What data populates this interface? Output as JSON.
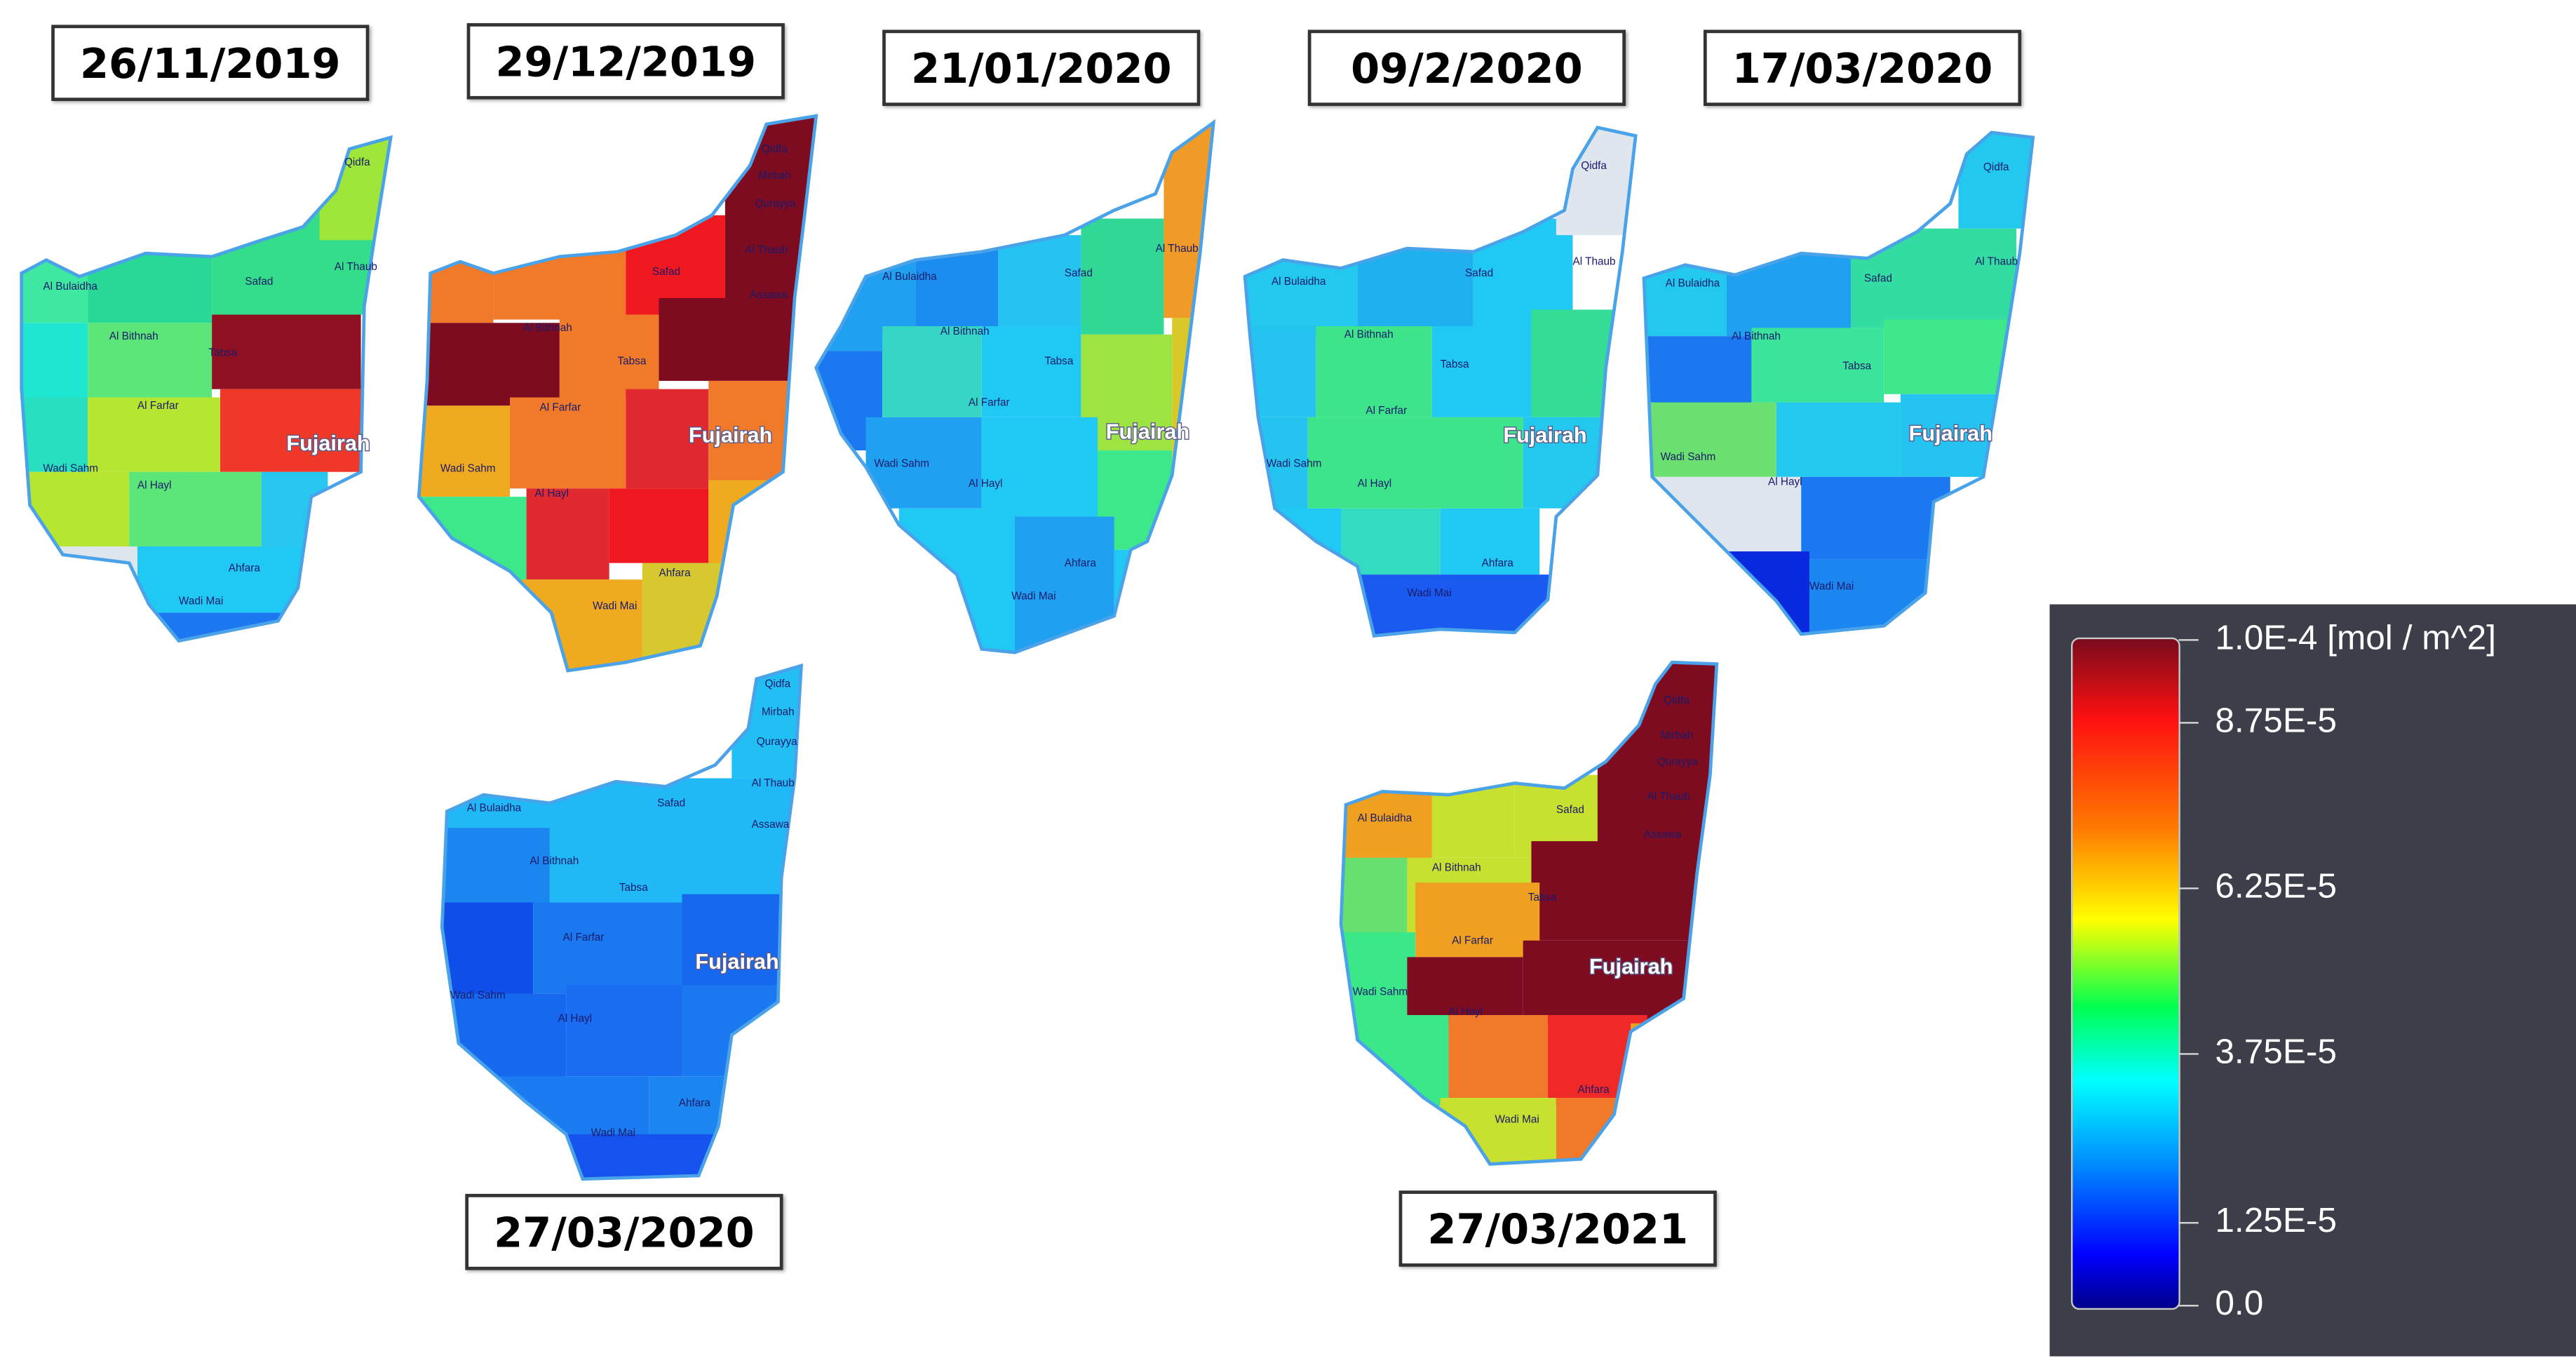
{
  "dates": [
    "26/11/2019",
    "29/12/2019",
    "21/01/2020",
    "09/2/2020",
    "17/03/2020",
    "27/03/2020",
    "27/03/2021"
  ],
  "colorbar": {
    "title": "1.0E-4 [mol / m^2]",
    "ticks": [
      "8.75E-5",
      "6.25E-5",
      "3.75E-5",
      "1.25E-5",
      "0.0"
    ],
    "colors": [
      "#7a0b1c",
      "#ff1010",
      "#ff7800",
      "#ffff00",
      "#00ff50",
      "#00ffff",
      "#0090ff",
      "#0000ff",
      "#00008b"
    ]
  },
  "places": [
    "Qidfa",
    "Mirbah",
    "Qurayya",
    "Al Thaub",
    "Assawa",
    "Safad",
    "Al Bulaidha",
    "Al Bithnah",
    "Tabsa",
    "Al Farfar",
    "Wadi Sahm",
    "Al Hayl",
    "Ahfara",
    "Wadi Mai"
  ],
  "city": "Fujairah"
}
